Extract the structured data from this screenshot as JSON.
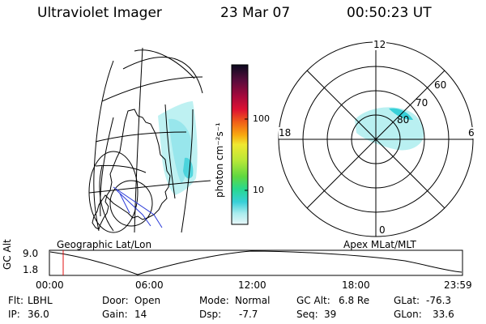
{
  "header": {
    "instrument": "Ultraviolet Imager",
    "date": "23 Mar 07",
    "time": "00:50:23 UT"
  },
  "colorbar": {
    "unit_label": "photon cm⁻²s⁻¹",
    "ticks": [
      "100",
      "10"
    ],
    "colors": [
      "#0a0a1e",
      "#5a0c3c",
      "#a80a3c",
      "#dd1133",
      "#f06018",
      "#f8a810",
      "#f0e830",
      "#b8e838",
      "#60d840",
      "#28d890",
      "#38d0d8",
      "#a8ecee",
      "#e8f6f8"
    ]
  },
  "geo_map": {
    "label": "Geographic Lat/Lon"
  },
  "polar_plot": {
    "label": "Apex MLat/MLT",
    "mlt_labels": {
      "top": "12",
      "left": "18",
      "right": "6",
      "bottom": "0"
    },
    "lat_labels": [
      "60",
      "70",
      "80"
    ]
  },
  "altitude_plot": {
    "ylabel": "GC Alt",
    "ymax": "9.0",
    "ymin": "1.8",
    "xticks": [
      "00:00",
      "06:00",
      "12:00",
      "18:00",
      "23:59"
    ],
    "marker_time": "00:50"
  },
  "info": {
    "flt_label": "Flt:",
    "flt_value": "LBHL",
    "ip_label": "IP:",
    "ip_value": "36.0",
    "door_label": "Door:",
    "door_value": "Open",
    "gain_label": "Gain:",
    "gain_value": "14",
    "mode_label": "Mode:",
    "mode_value": "Normal",
    "dsp_label": "Dsp:",
    "dsp_value": "-7.7",
    "gcalt_label": "GC Alt:",
    "gcalt_value": "6.8 Re",
    "seq_label": "Seq:",
    "seq_value": "39",
    "glat_label": "GLat:",
    "glat_value": "-76.3",
    "glon_label": "GLon:",
    "glon_value": "33.6"
  }
}
